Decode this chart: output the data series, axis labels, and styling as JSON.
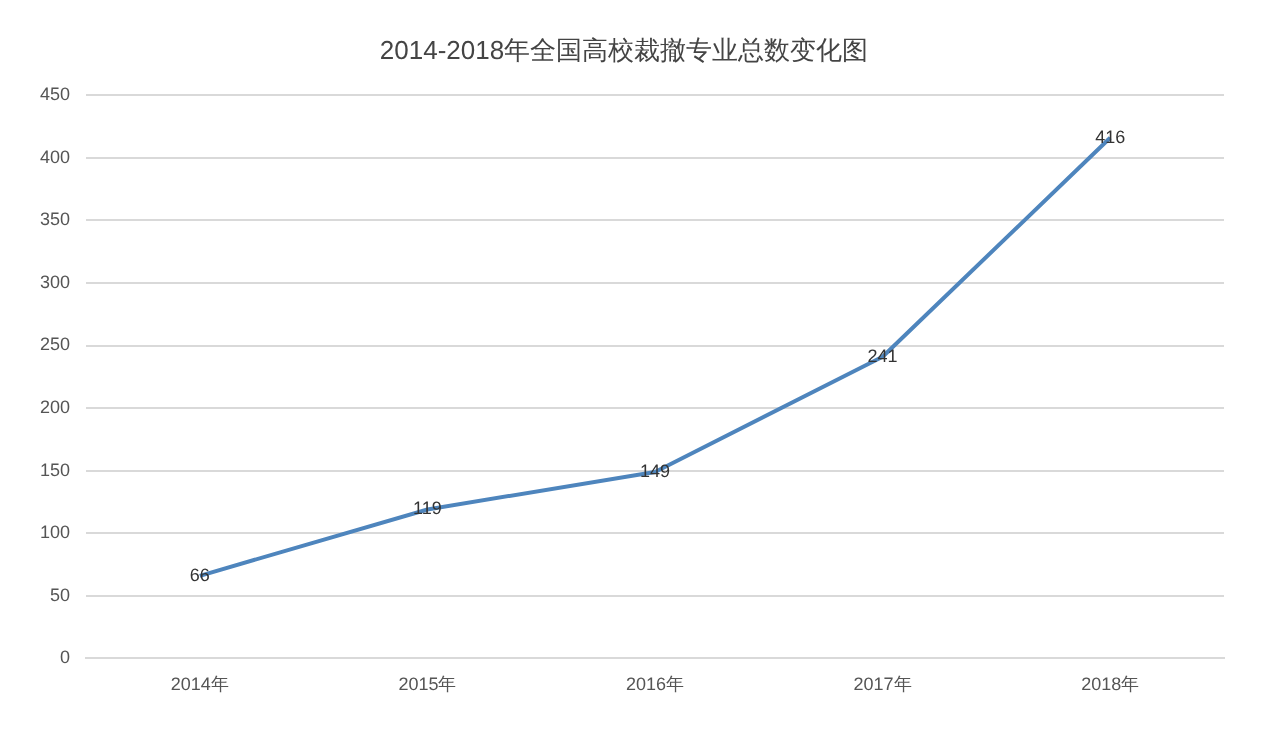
{
  "chart_data": {
    "type": "line",
    "title": "2014-2018年全国高校裁撤专业总数变化图",
    "categories": [
      "2014年",
      "2015年",
      "2016年",
      "2017年",
      "2018年"
    ],
    "series": [
      {
        "color": "#4e85bd",
        "values": [
          66,
          119,
          149,
          241,
          416
        ]
      }
    ],
    "ylim": [
      0,
      450
    ],
    "yticks": [
      0,
      50,
      100,
      150,
      200,
      250,
      300,
      350,
      400,
      450
    ],
    "grid": "y",
    "data_labels": true,
    "marker": "none",
    "line_style": "solid",
    "legend": false
  }
}
